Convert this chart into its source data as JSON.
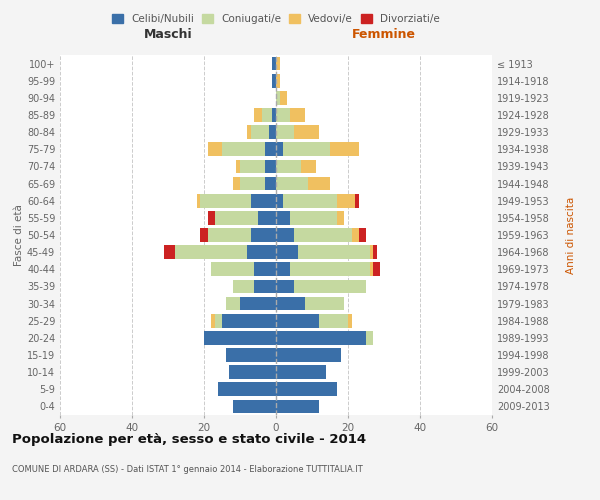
{
  "age_groups": [
    "0-4",
    "5-9",
    "10-14",
    "15-19",
    "20-24",
    "25-29",
    "30-34",
    "35-39",
    "40-44",
    "45-49",
    "50-54",
    "55-59",
    "60-64",
    "65-69",
    "70-74",
    "75-79",
    "80-84",
    "85-89",
    "90-94",
    "95-99",
    "100+"
  ],
  "birth_years": [
    "2009-2013",
    "2004-2008",
    "1999-2003",
    "1994-1998",
    "1989-1993",
    "1984-1988",
    "1979-1983",
    "1974-1978",
    "1969-1973",
    "1964-1968",
    "1959-1963",
    "1954-1958",
    "1949-1953",
    "1944-1948",
    "1939-1943",
    "1934-1938",
    "1929-1933",
    "1924-1928",
    "1919-1923",
    "1914-1918",
    "≤ 1913"
  ],
  "colors": {
    "celibi": "#3a6fa8",
    "coniugati": "#c5d9a0",
    "vedovi": "#f0c060",
    "divorziati": "#cc2222"
  },
  "males": {
    "celibi": [
      12,
      16,
      13,
      14,
      20,
      15,
      10,
      6,
      6,
      8,
      7,
      5,
      7,
      3,
      3,
      3,
      2,
      1,
      0,
      1,
      1
    ],
    "coniugati": [
      0,
      0,
      0,
      0,
      0,
      2,
      4,
      6,
      12,
      20,
      12,
      12,
      14,
      7,
      7,
      12,
      5,
      3,
      0,
      0,
      0
    ],
    "vedovi": [
      0,
      0,
      0,
      0,
      0,
      1,
      0,
      0,
      0,
      0,
      0,
      0,
      1,
      2,
      1,
      4,
      1,
      2,
      0,
      0,
      0
    ],
    "divorziati": [
      0,
      0,
      0,
      0,
      0,
      0,
      0,
      0,
      0,
      3,
      2,
      2,
      0,
      0,
      0,
      0,
      0,
      0,
      0,
      0,
      0
    ]
  },
  "females": {
    "celibi": [
      12,
      17,
      14,
      18,
      25,
      12,
      8,
      5,
      4,
      6,
      5,
      4,
      2,
      0,
      0,
      2,
      0,
      0,
      0,
      0,
      0
    ],
    "coniugati": [
      0,
      0,
      0,
      0,
      2,
      8,
      11,
      20,
      22,
      20,
      16,
      13,
      15,
      9,
      7,
      13,
      5,
      4,
      1,
      0,
      0
    ],
    "vedovi": [
      0,
      0,
      0,
      0,
      0,
      1,
      0,
      0,
      1,
      1,
      2,
      2,
      5,
      6,
      4,
      8,
      7,
      4,
      2,
      1,
      1
    ],
    "divorziati": [
      0,
      0,
      0,
      0,
      0,
      0,
      0,
      0,
      2,
      1,
      2,
      0,
      1,
      0,
      0,
      0,
      0,
      0,
      0,
      0,
      0
    ]
  },
  "xlim": 60,
  "title": "Popolazione per età, sesso e stato civile - 2014",
  "subtitle": "COMUNE DI ARDARA (SS) - Dati ISTAT 1° gennaio 2014 - Elaborazione TUTTITALIA.IT",
  "ylabel_left": "Fasce di età",
  "ylabel_right": "Anni di nascita",
  "xlabel_left": "Maschi",
  "xlabel_right": "Femmine",
  "legend_labels": [
    "Celibi/Nubili",
    "Coniugati/e",
    "Vedovi/e",
    "Divorziati/e"
  ],
  "bg_color": "#f4f4f4",
  "plot_bg_color": "#ffffff"
}
